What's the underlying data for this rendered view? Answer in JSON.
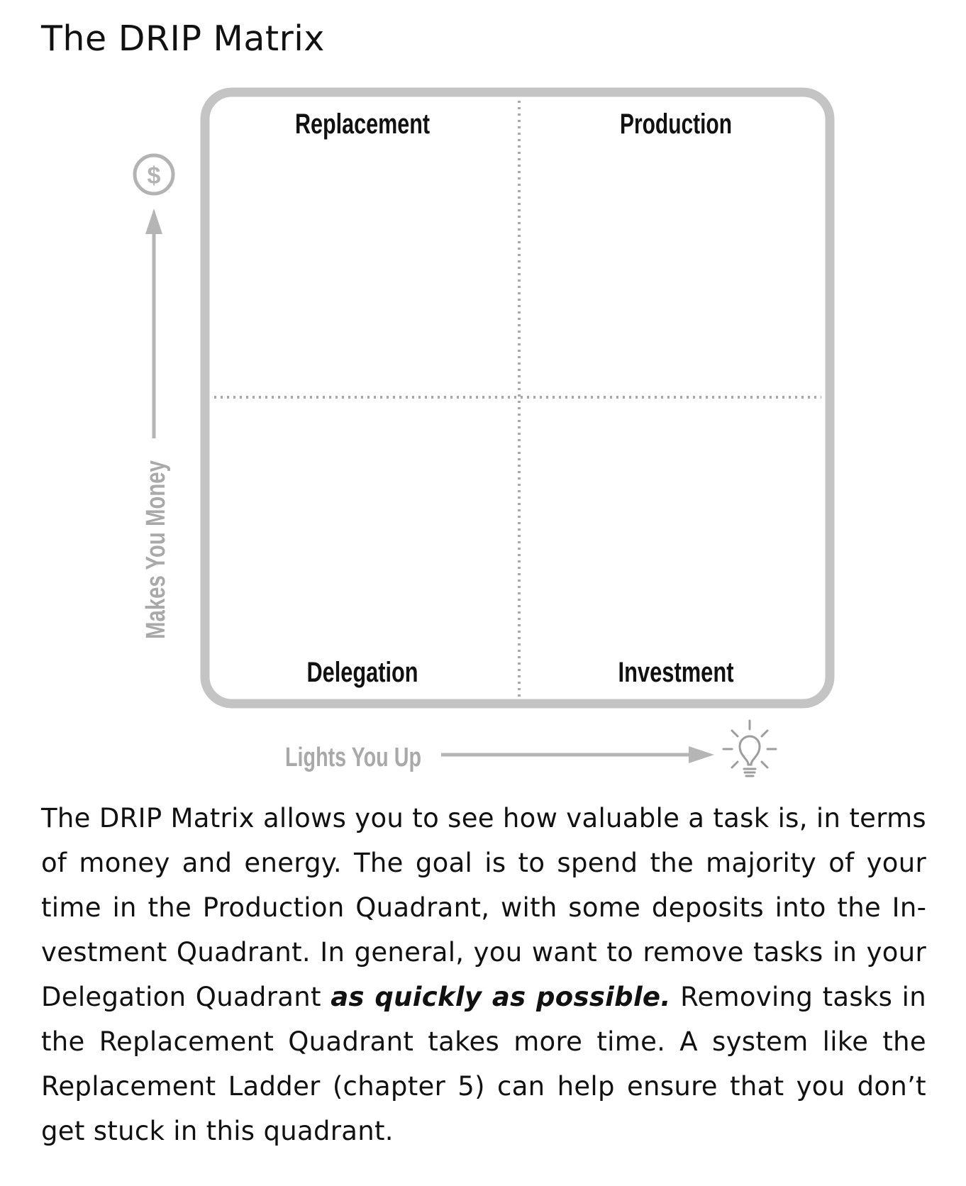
{
  "title": "The DRIP Matrix",
  "diagram": {
    "quadrants": {
      "top_left": "Replacement",
      "top_right": "Production",
      "bottom_left": "Delegation",
      "bottom_right": "Investment"
    },
    "y_axis_label": "Makes You Money",
    "x_axis_label": "Lights You Up",
    "y_axis_icon": "dollar-icon",
    "x_axis_icon": "lightbulb-icon",
    "colors": {
      "frame": "#c4c4c4",
      "axis": "#b5b5b5",
      "label": "#111111",
      "axis_label": "#a9a9a9"
    }
  },
  "body": {
    "part1": "The DRIP Matrix allows you to see how valuable a task is, in terms of money and energy. The goal is to spend the majority of your time in the Production Quadrant, with some deposits into the In­vestment Quadrant. In general, you want to remove tasks in your Delegation Quadrant",
    "emphasis": "as quickly as possible.",
    "part2": "Removing tasks in the Replacement Quadrant takes more time. A system like the Re­placement Ladder (chapter 5) can help ensure that you don’t get stuck in this quadrant."
  }
}
